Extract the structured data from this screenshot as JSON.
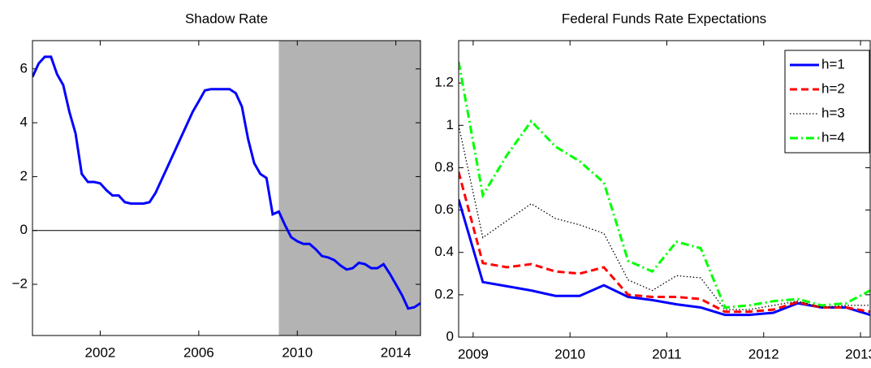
{
  "chart_data": [
    {
      "type": "line",
      "title": "Shadow Rate",
      "color": "#0000ff",
      "x": [
        1999.25,
        1999.5,
        1999.75,
        2000.0,
        2000.25,
        2000.5,
        2000.75,
        2001.0,
        2001.25,
        2001.5,
        2001.75,
        2002.0,
        2002.25,
        2002.5,
        2002.75,
        2003.0,
        2003.25,
        2003.5,
        2003.75,
        2004.0,
        2004.25,
        2004.5,
        2004.75,
        2005.0,
        2005.25,
        2005.5,
        2005.75,
        2006.0,
        2006.25,
        2006.5,
        2006.75,
        2007.0,
        2007.25,
        2007.5,
        2007.75,
        2008.0,
        2008.25,
        2008.5,
        2008.75,
        2009.0,
        2009.25,
        2009.5,
        2009.75,
        2010.0,
        2010.25,
        2010.5,
        2010.75,
        2011.0,
        2011.25,
        2011.5,
        2011.75,
        2012.0,
        2012.25,
        2012.5,
        2012.75,
        2013.0,
        2013.25,
        2013.5,
        2013.75,
        2014.0,
        2014.25,
        2014.5,
        2014.75,
        2015.0
      ],
      "values": [
        5.7,
        6.2,
        6.45,
        6.45,
        5.8,
        5.4,
        4.4,
        3.6,
        2.1,
        1.8,
        1.8,
        1.75,
        1.5,
        1.3,
        1.3,
        1.05,
        1.0,
        1.0,
        1.0,
        1.05,
        1.4,
        1.9,
        2.4,
        2.9,
        3.4,
        3.9,
        4.4,
        4.8,
        5.2,
        5.25,
        5.25,
        5.25,
        5.25,
        5.1,
        4.6,
        3.4,
        2.5,
        2.1,
        1.95,
        0.6,
        0.7,
        0.2,
        -0.25,
        -0.4,
        -0.5,
        -0.5,
        -0.7,
        -0.95,
        -1.0,
        -1.1,
        -1.3,
        -1.45,
        -1.4,
        -1.2,
        -1.25,
        -1.4,
        -1.4,
        -1.25,
        -1.6,
        -2.0,
        -2.4,
        -2.9,
        -2.85,
        -2.7
      ],
      "xlim": [
        1999.25,
        2015.0
      ],
      "xticks": [
        2002,
        2006,
        2010,
        2014
      ],
      "ylim": [
        -3.9,
        7.05
      ],
      "yticks": [
        {
          "value": -2,
          "label": "−2"
        },
        0,
        2,
        4,
        6
      ],
      "shaded_region": [
        2009.25,
        2015.0
      ],
      "shade_color": "#b3b3b3",
      "zero_line": true
    },
    {
      "type": "line",
      "title": "Federal Funds Rate Expectations",
      "x": [
        2008.85,
        2009.1,
        2009.35,
        2009.6,
        2009.85,
        2010.1,
        2010.35,
        2010.6,
        2010.85,
        2011.1,
        2011.35,
        2011.6,
        2011.85,
        2012.1,
        2012.35,
        2012.6,
        2012.85,
        2013.1
      ],
      "series": [
        {
          "name": "h=1",
          "color": "#0000ff",
          "dash": "solid",
          "values": [
            0.65,
            0.26,
            0.24,
            0.22,
            0.195,
            0.195,
            0.245,
            0.19,
            0.175,
            0.155,
            0.14,
            0.105,
            0.105,
            0.115,
            0.16,
            0.14,
            0.14,
            0.105
          ]
        },
        {
          "name": "h=2",
          "color": "#ff0000",
          "dash": "dashed",
          "values": [
            0.78,
            0.35,
            0.33,
            0.345,
            0.31,
            0.3,
            0.33,
            0.2,
            0.19,
            0.19,
            0.18,
            0.12,
            0.12,
            0.13,
            0.165,
            0.14,
            0.14,
            0.12
          ]
        },
        {
          "name": "h=3",
          "color": "#000000",
          "dash": "dotted",
          "values": [
            1.0,
            0.47,
            0.55,
            0.63,
            0.56,
            0.53,
            0.49,
            0.27,
            0.22,
            0.29,
            0.28,
            0.13,
            0.13,
            0.15,
            0.17,
            0.14,
            0.15,
            0.15
          ]
        },
        {
          "name": "h=4",
          "color": "#00ff00",
          "dash": "dashdot",
          "values": [
            1.3,
            0.67,
            0.86,
            1.02,
            0.9,
            0.83,
            0.73,
            0.36,
            0.31,
            0.45,
            0.42,
            0.14,
            0.15,
            0.17,
            0.18,
            0.15,
            0.16,
            0.22
          ]
        }
      ],
      "xlim": [
        2008.85,
        2013.1
      ],
      "xticks": [
        2009,
        2010,
        2011,
        2012,
        2013
      ],
      "ylim": [
        0,
        1.4
      ],
      "yticks": [
        0,
        0.2,
        0.4,
        0.6,
        0.8,
        1,
        1.2
      ],
      "legend": "upper right"
    }
  ]
}
